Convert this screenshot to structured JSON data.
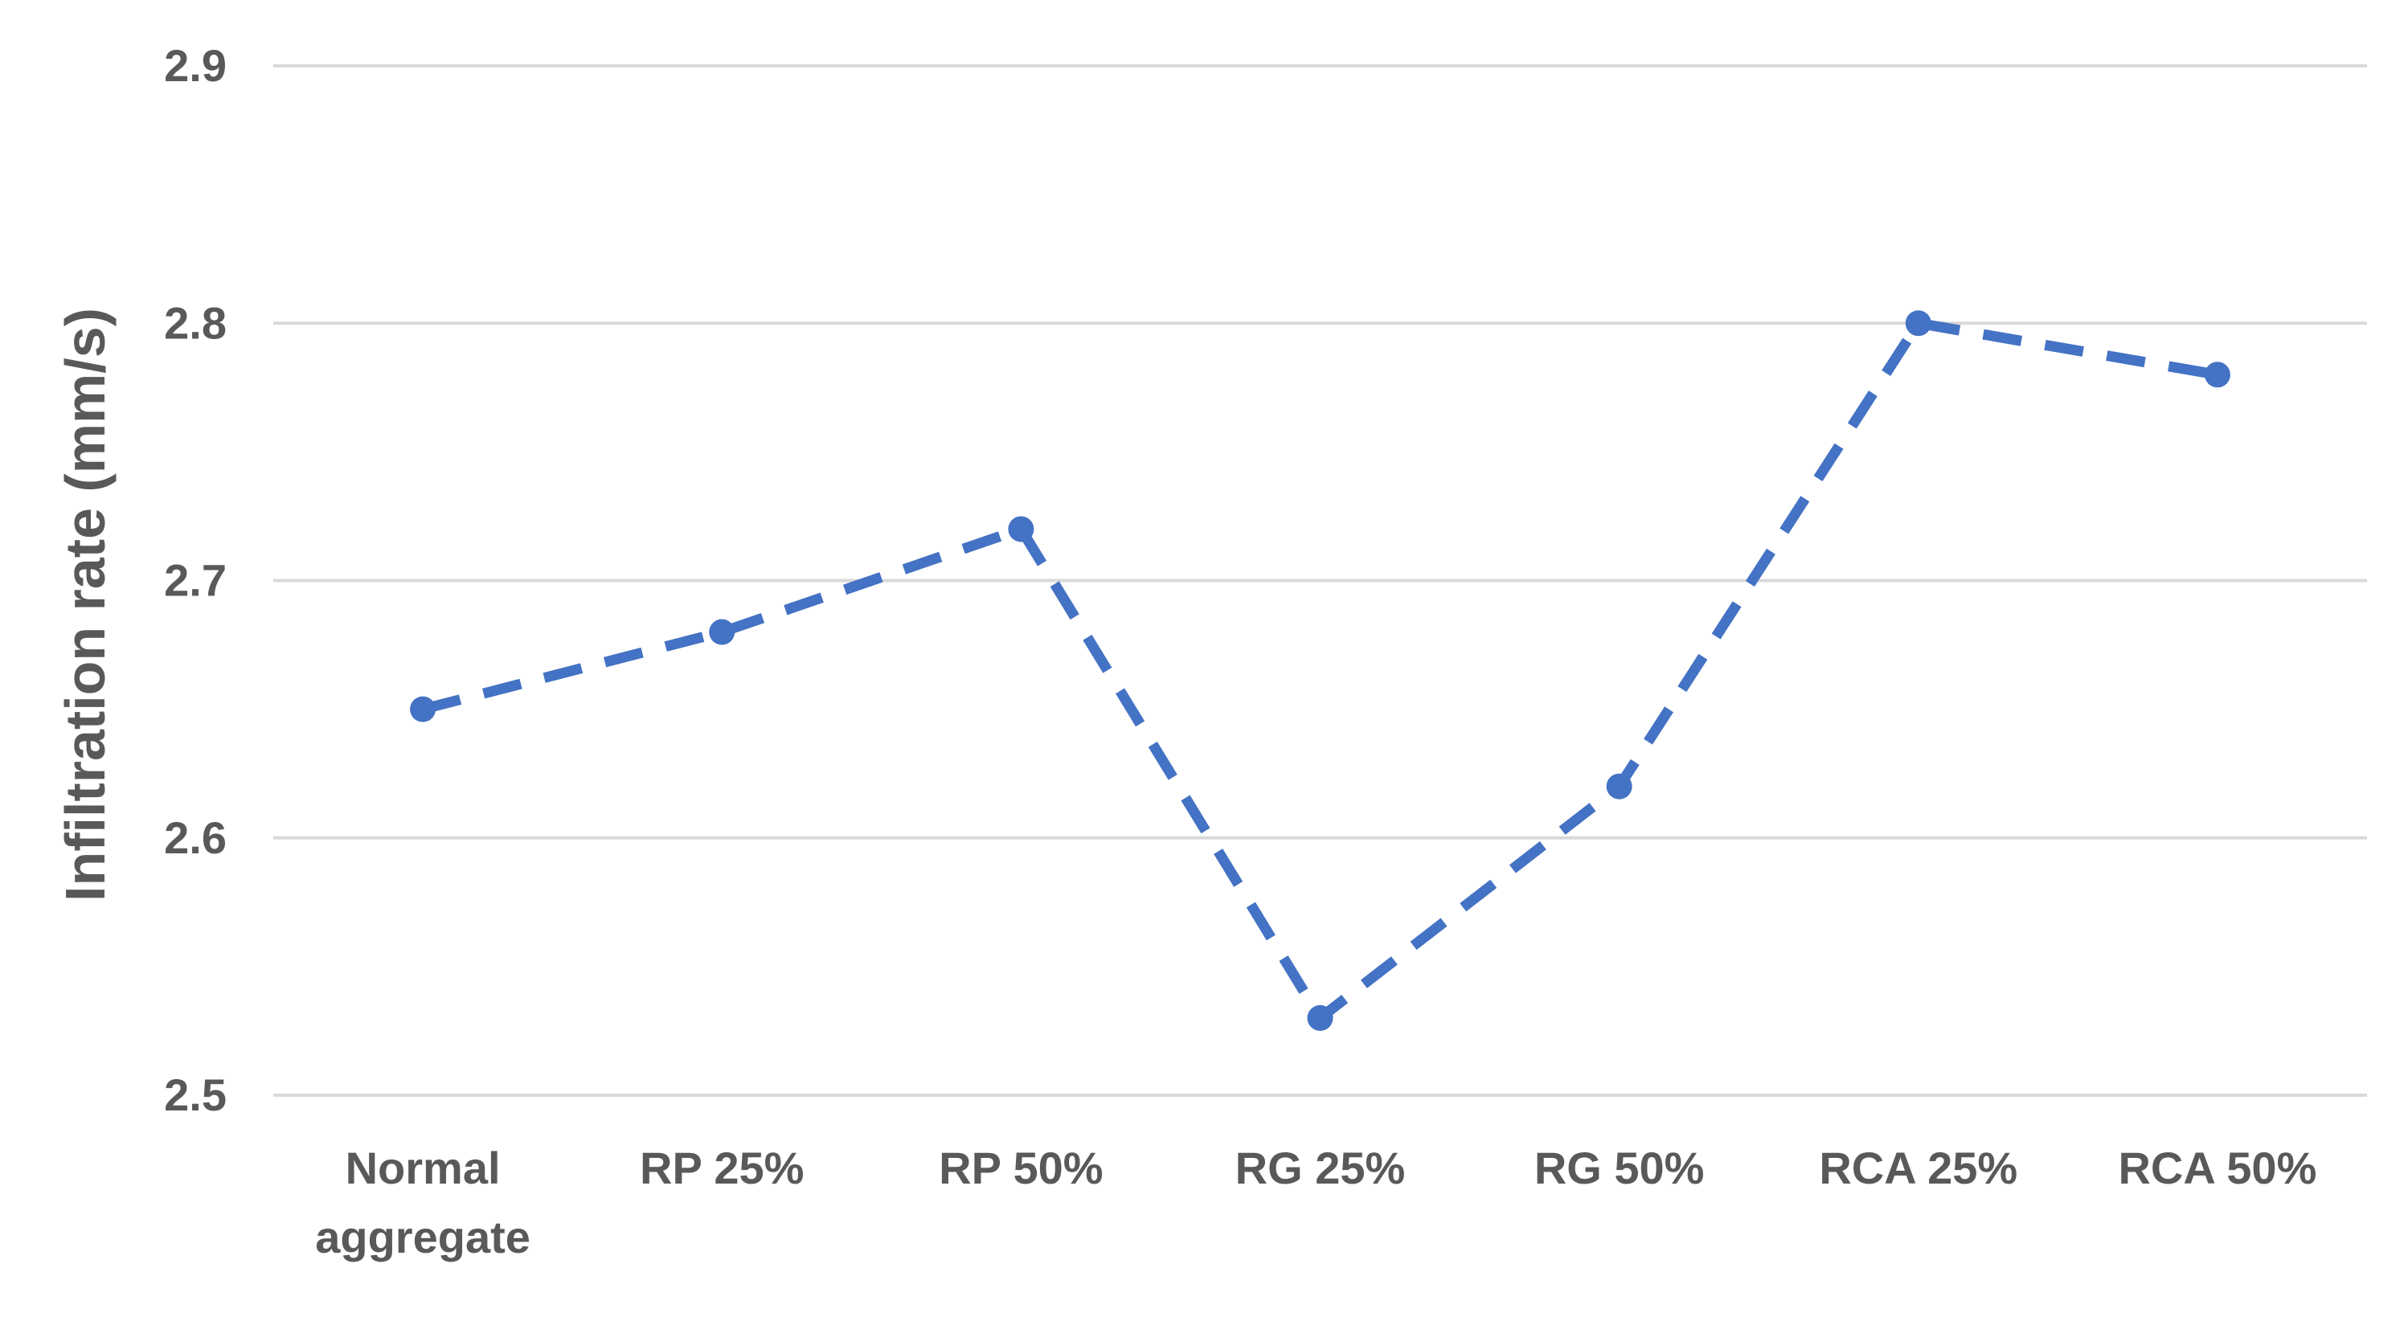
{
  "chart_data": {
    "type": "line",
    "categories": [
      [
        "Normal",
        "aggregate"
      ],
      [
        "RP 25%"
      ],
      [
        "RP 50%"
      ],
      [
        "RG 25%"
      ],
      [
        "RG 50%"
      ],
      [
        "RCA 25%"
      ],
      [
        "RCA 50%"
      ]
    ],
    "series": [
      {
        "values": [
          2.65,
          2.68,
          2.72,
          2.53,
          2.62,
          2.8,
          2.78
        ]
      }
    ],
    "title": "",
    "xlabel": "",
    "ylabel": "Infiltration rate (mm/s)",
    "ylim": [
      2.5,
      2.9
    ],
    "yticks": [
      "2.5",
      "2.6",
      "2.7",
      "2.8",
      "2.9"
    ],
    "grid": true,
    "line_style": "dashed",
    "series_color": "#4472C4",
    "grid_color": "#D9D9D9",
    "text_color": "#595959"
  }
}
